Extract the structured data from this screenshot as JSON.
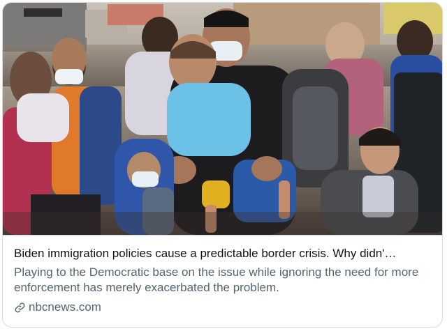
{
  "card": {
    "title": "Biden immigration policies cause a predictable border crisis. Why didn'…",
    "description": "Playing to the Democratic base on the issue while ignoring the need for more enforcement has merely exacerbated the problem.",
    "domain": "nbcnews.com",
    "domain_icon": "link-icon"
  },
  "colors": {
    "title": "#0f1419",
    "secondary": "#536471",
    "border": "#cfd9de"
  }
}
